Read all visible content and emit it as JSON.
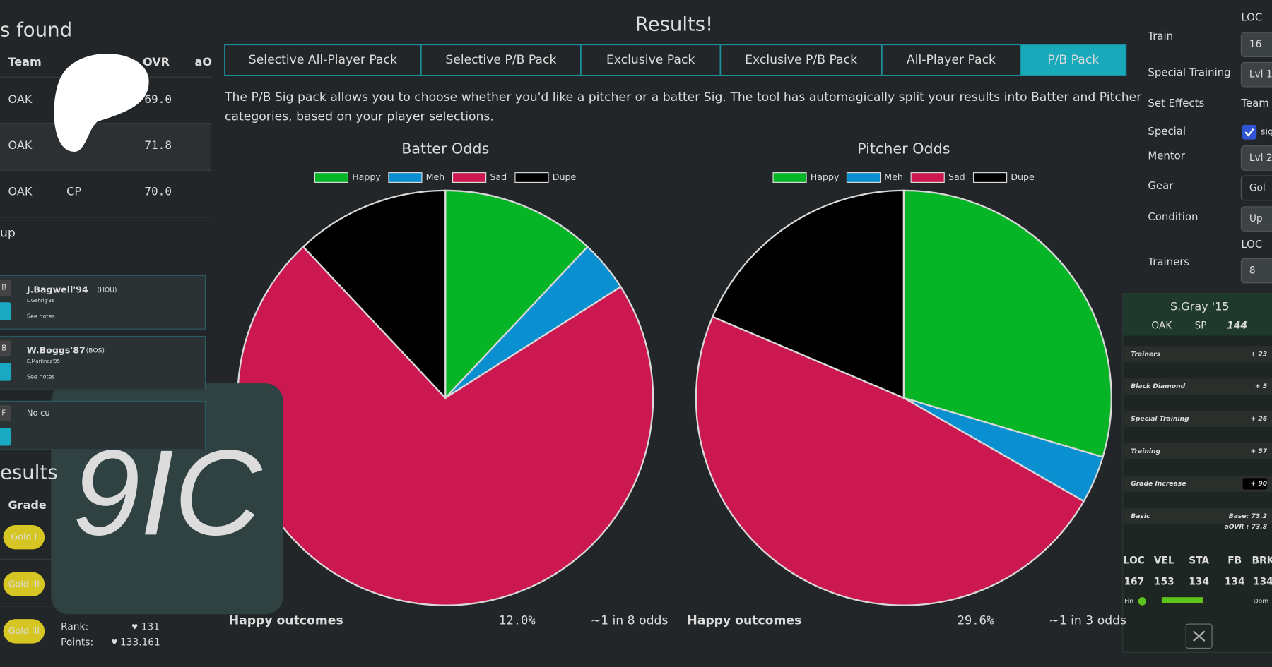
{
  "left_panel": {
    "heading": "s found",
    "columns": [
      "Team",
      "OVR",
      "aO"
    ],
    "rows": [
      {
        "team": "OAK",
        "ovr": "69.0"
      },
      {
        "team": "OAK",
        "ovr": "71.8"
      },
      {
        "team": "OAK",
        "pos": "CP",
        "ovr": "70.0"
      }
    ],
    "section": "up",
    "lineup": [
      {
        "pos": "B",
        "name": "J.Bagwell'94",
        "team": "(HOU)",
        "sub": "L.Gehrig'36",
        "note": "See notes"
      },
      {
        "pos": "B",
        "name": "W.Boggs'87",
        "team": "(BOS)",
        "sub": "E.Martinez'95",
        "note": "See notes"
      },
      {
        "pos": "F",
        "name": "No cu"
      }
    ],
    "results_heading": "esults",
    "grade_header": "Grade",
    "grades": [
      "Gold I",
      "Gold III",
      "Gold III"
    ],
    "rank_label": "Rank:",
    "rank": "131",
    "points_label": "Points:",
    "points": "133.161"
  },
  "logo": "9IC",
  "main": {
    "title": "Results!",
    "tabs": [
      "Selective All-Player Pack",
      "Selective P/B Pack",
      "Exclusive Pack",
      "Exclusive P/B Pack",
      "All-Player Pack",
      "P/B Pack"
    ],
    "active_tab": 5,
    "description": [
      "The P/B Sig pack allows you to choose whether you'd like a pitcher or a batter Sig. The tool has automagically split your results into Batter and Pitcher",
      "categories, based on your player selections."
    ]
  },
  "chart_data": [
    {
      "type": "pie",
      "title": "Batter Odds",
      "series": [
        {
          "name": "Happy",
          "color": "#05b526",
          "values": [
            12.0
          ]
        },
        {
          "name": "Meh",
          "color": "#0a8fd0",
          "values": [
            4
          ]
        },
        {
          "name": "Sad",
          "color": "#cc1850",
          "values": [
            72
          ]
        },
        {
          "name": "Dupe",
          "color": "#000000",
          "values": [
            12
          ]
        }
      ],
      "summary": {
        "label": "Happy outcomes",
        "value": "12.0%",
        "odds": "~1 in 8 odds"
      }
    },
    {
      "type": "pie",
      "title": "Pitcher Odds",
      "series": [
        {
          "name": "Happy",
          "color": "#05b526",
          "values": [
            29.6
          ]
        },
        {
          "name": "Meh",
          "color": "#0a8fd0",
          "values": [
            3.7
          ]
        },
        {
          "name": "Sad",
          "color": "#cc1850",
          "values": [
            48.1
          ]
        },
        {
          "name": "Dupe",
          "color": "#000000",
          "values": [
            18.6
          ]
        }
      ],
      "summary": {
        "label": "Happy outcomes",
        "value": "29.6%",
        "odds": "~1 in 3 odds"
      }
    }
  ],
  "right_panel": {
    "loc_header": "LOC",
    "fields": [
      {
        "label": "Train",
        "value": "16"
      },
      {
        "label": "Special Training",
        "value": "Lvl 1"
      },
      {
        "label": "Set Effects",
        "value": "Team"
      },
      {
        "label": "Special",
        "value": "sig"
      },
      {
        "label": "Mentor",
        "value": "Lvl 2"
      },
      {
        "label": "Gear",
        "value": "Gol"
      },
      {
        "label": "Condition",
        "value": "Up"
      },
      {
        "label": "Trainers",
        "value": "8"
      }
    ]
  },
  "card": {
    "name": "S.Gray '15",
    "team": "OAK",
    "pos": "SP",
    "ovr": "144",
    "bonuses": [
      {
        "label": "Trainers",
        "value": "+ 23"
      },
      {
        "label": "Black Diamond",
        "value": "+ 5"
      },
      {
        "label": "Special Training",
        "value": "+ 26"
      },
      {
        "label": "Training",
        "value": "+ 57"
      },
      {
        "label": "Grade Increase",
        "value": "+ 90"
      },
      {
        "label": "Basic",
        "value": "Base: 73.2"
      }
    ],
    "aovr": "aOVR : 73.8",
    "stat_names": [
      "LOC",
      "VEL",
      "STA",
      "FB",
      "BRK"
    ],
    "stat_values": [
      "167",
      "153",
      "134",
      "134",
      "134"
    ],
    "fin": "Fin",
    "dom": "Dom"
  }
}
